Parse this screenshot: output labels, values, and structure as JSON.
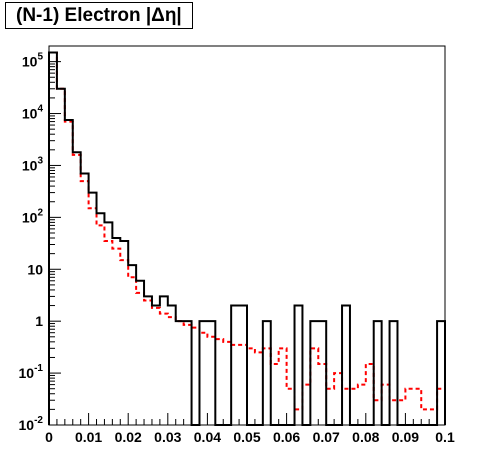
{
  "chart_data": {
    "type": "histogram",
    "title": "(N-1) Electron |Δη|",
    "xlabel": "",
    "ylabel": "",
    "xlim": [
      0,
      0.1
    ],
    "ylim": [
      0.01,
      200000
    ],
    "yscale": "log",
    "grid": false,
    "bin_width": 0.002,
    "x_tick_labels": [
      "0",
      "0.01",
      "0.02",
      "0.03",
      "0.04",
      "0.05",
      "0.06",
      "0.07",
      "0.08",
      "0.09",
      "0.1"
    ],
    "y_tick_labels": [
      {
        "mantissa": "10",
        "exp": "-2",
        "value": 0.01
      },
      {
        "mantissa": "10",
        "exp": "-1",
        "value": 0.1
      },
      {
        "mantissa": "1",
        "exp": "",
        "value": 1
      },
      {
        "mantissa": "10",
        "exp": "",
        "value": 10
      },
      {
        "mantissa": "10",
        "exp": "2",
        "value": 100
      },
      {
        "mantissa": "10",
        "exp": "3",
        "value": 1000
      },
      {
        "mantissa": "10",
        "exp": "4",
        "value": 10000
      },
      {
        "mantissa": "10",
        "exp": "5",
        "value": 100000
      }
    ],
    "series": [
      {
        "color": "#000000",
        "style": "solid",
        "values": [
          150000,
          30000,
          7500,
          1800,
          700,
          300,
          120,
          80,
          40,
          35,
          12,
          6,
          3,
          2,
          3,
          2,
          1,
          1,
          0,
          1,
          1,
          0,
          0,
          2,
          2,
          0,
          0,
          1,
          0,
          0,
          0,
          2,
          0,
          1,
          1,
          0,
          0,
          2,
          0,
          0,
          0,
          1,
          0,
          1,
          0,
          0,
          0,
          0,
          0,
          1
        ]
      },
      {
        "color": "#ff0000",
        "style": "dashed",
        "values": [
          150000,
          30000,
          7000,
          1600,
          500,
          150,
          70,
          35,
          25,
          15,
          7,
          3.5,
          2.5,
          1.8,
          1.4,
          1.2,
          1.0,
          0.85,
          0.75,
          0.6,
          0.5,
          0.45,
          0.4,
          0.35,
          0.35,
          0.3,
          0.25,
          0.3,
          0.15,
          0.3,
          0.05,
          0.02,
          0.06,
          0.3,
          0.15,
          0.05,
          0.1,
          0.05,
          0.05,
          0.06,
          0.15,
          0.03,
          0.06,
          0.03,
          0.03,
          0.05,
          0.05,
          0.02,
          0.02,
          0.05
        ]
      }
    ]
  }
}
